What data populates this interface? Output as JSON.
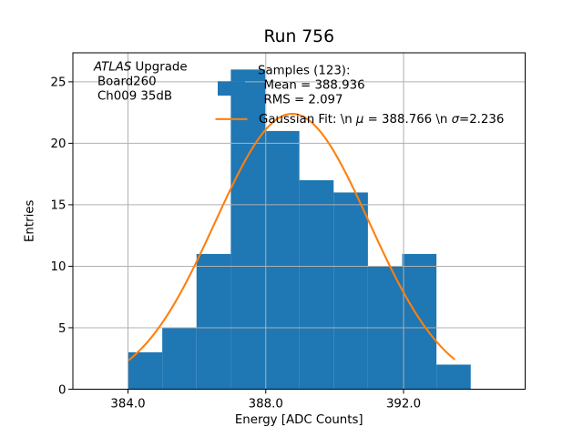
{
  "title": "Run 756",
  "axes": {
    "xlabel": "Energy [ADC Counts]",
    "ylabel": "Entries"
  },
  "annotation": {
    "line1_italic": "ATLAS",
    "line1_rest": " Upgrade",
    "line2": "Board260",
    "line3": "Ch009 35dB"
  },
  "legend": {
    "samples_title": "Samples (123):",
    "samples_mean": "Mean = 388.936",
    "samples_rms": "RMS = 2.097",
    "gaussian_prefix": "Gaussian Fit: \\n ",
    "gaussian_mu": "μ",
    "gaussian_mid": " = 388.766 \\n ",
    "gaussian_sigma": "σ",
    "gaussian_suffix": "=2.236"
  },
  "colors": {
    "histogram": "#1f77b4",
    "fit_line": "#ff7f0e",
    "grid": "#b0b0b0",
    "text": "#000000",
    "background": "#ffffff"
  },
  "chart_data": {
    "type": "bar",
    "subtype": "histogram-with-gaussian-fit",
    "title": "Run 756",
    "xlabel": "Energy [ADC Counts]",
    "ylabel": "Entries",
    "xlim": [
      382.4,
      395.53
    ],
    "ylim": [
      0,
      27.36
    ],
    "x_ticks": [
      384.0,
      388.0,
      392.0
    ],
    "x_tick_labels": [
      "384.0",
      "388.0",
      "392.0"
    ],
    "y_ticks": [
      0,
      5,
      10,
      15,
      20,
      25
    ],
    "y_tick_labels": [
      "0",
      "5",
      "10",
      "15",
      "20",
      "25"
    ],
    "grid": true,
    "legend_position": "upper-center, frameless",
    "histogram": {
      "bin_start": 384.0,
      "bin_width": 0.995,
      "bin_edges": [
        384.0,
        384.995,
        385.99,
        386.985,
        387.98,
        388.975,
        389.97,
        390.965,
        391.96,
        392.955,
        393.95
      ],
      "counts": [
        3,
        5,
        11,
        26,
        21,
        17,
        16,
        10,
        11,
        2
      ]
    },
    "gaussian_fit": {
      "amplitude": 22.4,
      "mu": 388.766,
      "sigma": 2.236,
      "x_range": [
        384.03,
        393.47
      ]
    },
    "annotations": [
      "ATLAS Upgrade",
      "Board260",
      "Ch009 35dB"
    ],
    "legend_entries": [
      "Samples (123): Mean = 388.936 RMS = 2.097",
      "Gaussian Fit: \\n μ = 388.766 \\n σ=2.236"
    ]
  }
}
